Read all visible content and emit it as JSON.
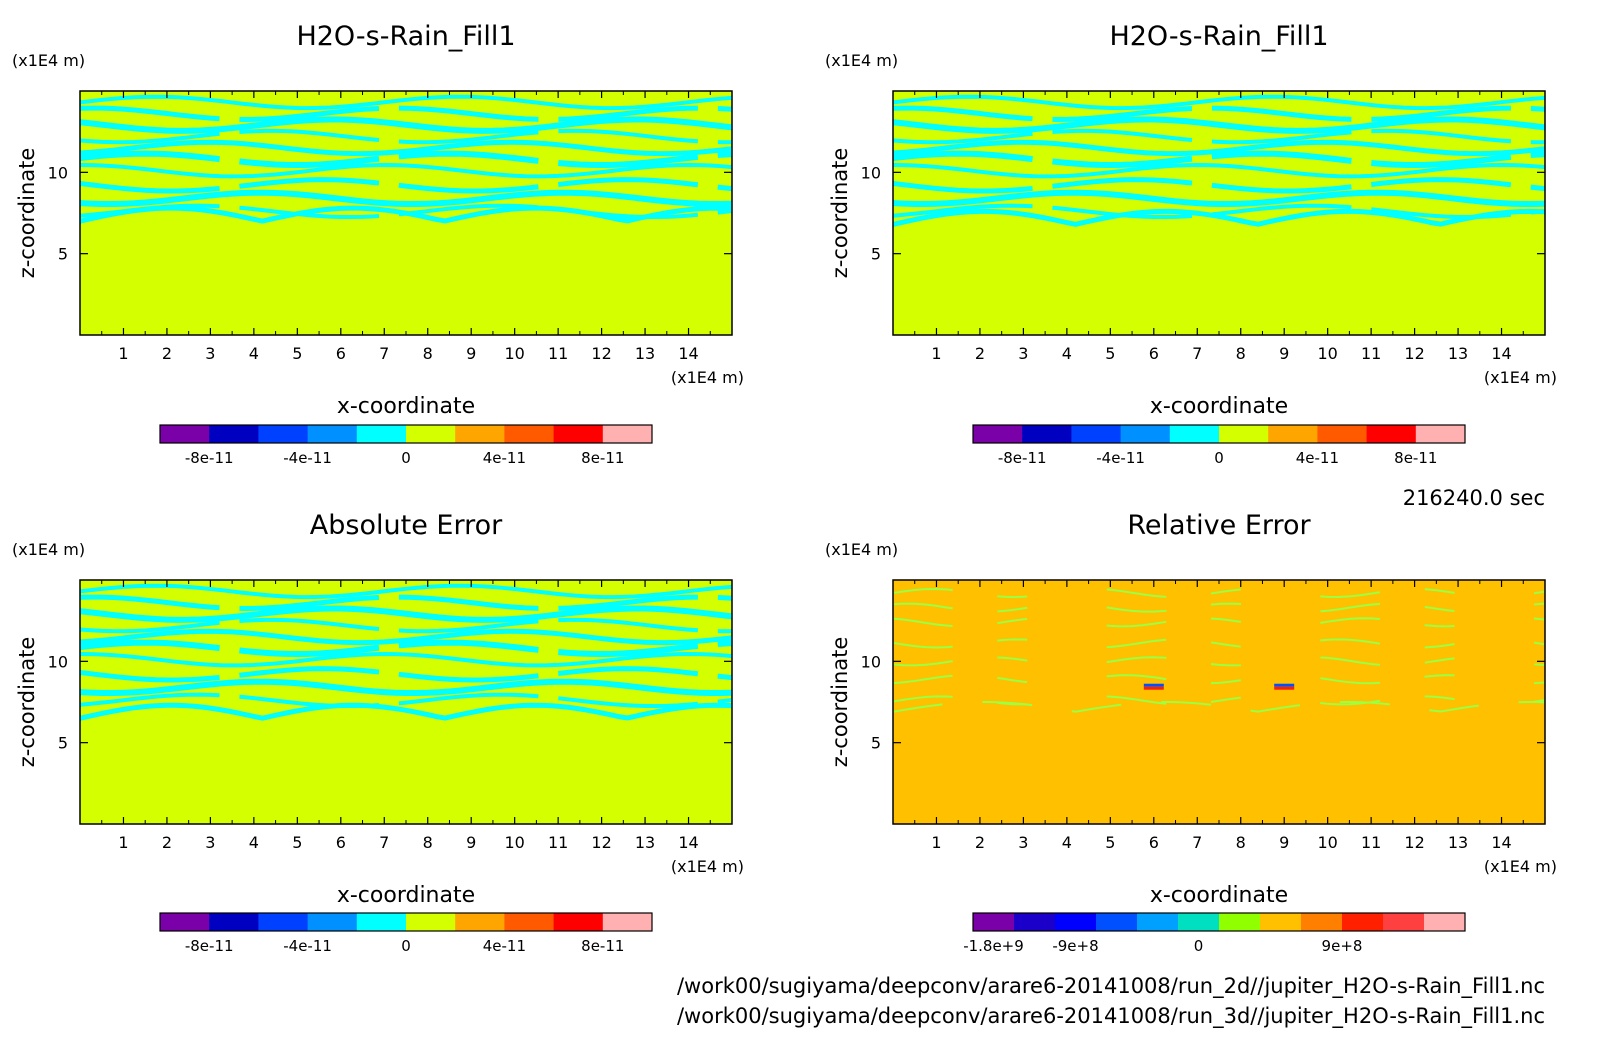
{
  "time_label": "216240.0 sec",
  "file_paths": [
    "/work00/sugiyama/deepconv/arare6-20141008/run_2d//jupiter_H2O-s-Rain_Fill1.nc",
    "/work00/sugiyama/deepconv/arare6-20141008/run_3d//jupiter_H2O-s-Rain_Fill1.nc"
  ],
  "chart_data": [
    {
      "type": "heatmap",
      "title": "H2O-s-Rain_Fill1",
      "xlabel": "x-coordinate",
      "ylabel": "z-coordinate",
      "x_unit": "(x1E4 m)",
      "y_unit": "(x1E4 m)",
      "xlim": [
        0,
        15
      ],
      "ylim": [
        0,
        15
      ],
      "x_ticks": [
        "1",
        "2",
        "3",
        "4",
        "5",
        "6",
        "7",
        "8",
        "9",
        "10",
        "11",
        "12",
        "13",
        "14"
      ],
      "y_ticks": [
        "5",
        "10"
      ],
      "background_level": "0 to 2e-11 (yellow-green)",
      "colorbar": {
        "colors": [
          "#7a00a8",
          "#0000c0",
          "#0040ff",
          "#0090ff",
          "#00ffff",
          "#d4ff00",
          "#ffa500",
          "#ff5a00",
          "#ff0000",
          "#ffb0b0"
        ],
        "tick_labels": [
          "-8e-11",
          "-4e-11",
          "0",
          "4e-11",
          "8e-11"
        ]
      }
    },
    {
      "type": "heatmap",
      "title": "H2O-s-Rain_Fill1",
      "xlabel": "x-coordinate",
      "ylabel": "z-coordinate",
      "x_unit": "(x1E4 m)",
      "y_unit": "(x1E4 m)",
      "xlim": [
        0,
        15
      ],
      "ylim": [
        0,
        15
      ],
      "x_ticks": [
        "1",
        "2",
        "3",
        "4",
        "5",
        "6",
        "7",
        "8",
        "9",
        "10",
        "11",
        "12",
        "13",
        "14"
      ],
      "y_ticks": [
        "5",
        "10"
      ],
      "background_level": "0 to 2e-11 (yellow-green)",
      "colorbar": {
        "colors": [
          "#7a00a8",
          "#0000c0",
          "#0040ff",
          "#0090ff",
          "#00ffff",
          "#d4ff00",
          "#ffa500",
          "#ff5a00",
          "#ff0000",
          "#ffb0b0"
        ],
        "tick_labels": [
          "-8e-11",
          "-4e-11",
          "0",
          "4e-11",
          "8e-11"
        ]
      }
    },
    {
      "type": "heatmap",
      "title": "Absolute Error",
      "xlabel": "x-coordinate",
      "ylabel": "z-coordinate",
      "x_unit": "(x1E4 m)",
      "y_unit": "(x1E4 m)",
      "xlim": [
        0,
        15
      ],
      "ylim": [
        0,
        15
      ],
      "x_ticks": [
        "1",
        "2",
        "3",
        "4",
        "5",
        "6",
        "7",
        "8",
        "9",
        "10",
        "11",
        "12",
        "13",
        "14"
      ],
      "y_ticks": [
        "5",
        "10"
      ],
      "background_level": "0 to 2e-11 (yellow-green)",
      "colorbar": {
        "colors": [
          "#7a00a8",
          "#0000c0",
          "#0040ff",
          "#0090ff",
          "#00ffff",
          "#d4ff00",
          "#ffa500",
          "#ff5a00",
          "#ff0000",
          "#ffb0b0"
        ],
        "tick_labels": [
          "-8e-11",
          "-4e-11",
          "0",
          "4e-11",
          "8e-11"
        ]
      }
    },
    {
      "type": "heatmap",
      "title": "Relative Error",
      "xlabel": "x-coordinate",
      "ylabel": "z-coordinate",
      "x_unit": "(x1E4 m)",
      "y_unit": "(x1E4 m)",
      "xlim": [
        0,
        15
      ],
      "ylim": [
        0,
        15
      ],
      "x_ticks": [
        "1",
        "2",
        "3",
        "4",
        "5",
        "6",
        "7",
        "8",
        "9",
        "10",
        "11",
        "12",
        "13",
        "14"
      ],
      "y_ticks": [
        "5",
        "10"
      ],
      "background_level": "0 to 3e+8 (orange)",
      "hot_spots_x": [
        6,
        9
      ],
      "colorbar": {
        "colors": [
          "#7a00a8",
          "#1a00c8",
          "#0000ff",
          "#0050ff",
          "#00a0ff",
          "#00e0c0",
          "#90ff00",
          "#ffc000",
          "#ff8000",
          "#ff2000",
          "#ff4040",
          "#ffb0b0"
        ],
        "tick_labels": [
          "-1.8e+9",
          "-9e+8",
          "0",
          "9e+8"
        ]
      }
    }
  ]
}
